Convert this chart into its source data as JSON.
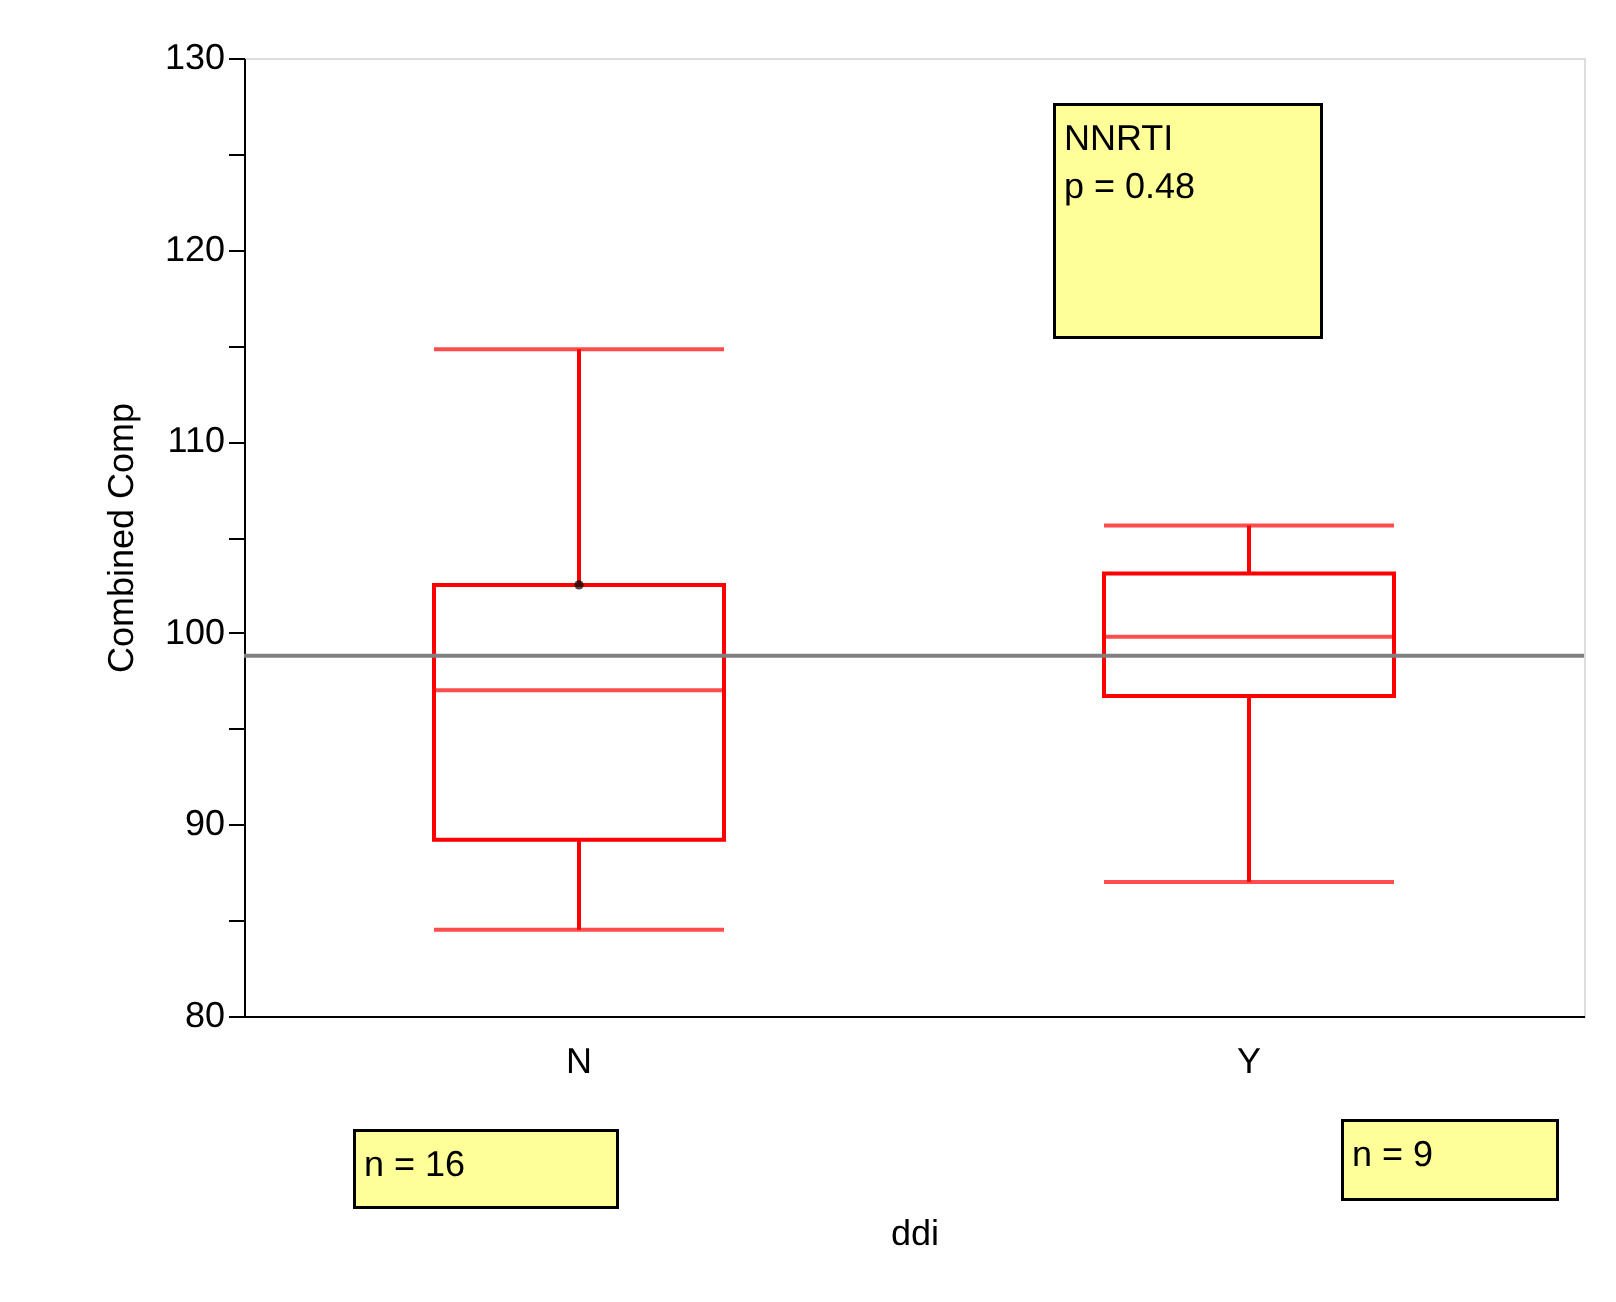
{
  "chart_data": {
    "type": "box",
    "xlabel": "ddi",
    "ylabel": "Combined Comp",
    "categories": [
      "N",
      "Y"
    ],
    "series": [
      {
        "type": "box",
        "color": "#ff0000",
        "boxes": [
          {
            "low": 84.5,
            "q1": 89.2,
            "median": 97.0,
            "q3": 102.5,
            "high": 114.8
          },
          {
            "low": 87.0,
            "q1": 96.7,
            "median": 99.8,
            "q3": 103.1,
            "high": 105.6
          }
        ]
      },
      {
        "type": "scatter",
        "x": [
          "N"
        ],
        "values": [
          102.5
        ],
        "color": "#000000"
      }
    ],
    "ylim": [
      80,
      130
    ],
    "yticks": [
      80,
      {
        "value": 85,
        "label": null
      },
      90,
      {
        "value": 95,
        "label": null
      },
      100,
      {
        "value": 105,
        "label": null
      },
      110,
      {
        "value": 115,
        "label": null
      },
      120,
      {
        "value": 125,
        "label": null
      },
      130
    ],
    "grid": false,
    "marker": "circle",
    "ref_lines": [
      {
        "axis": "y",
        "value": 98.8,
        "color": "#808080"
      }
    ],
    "annotations": [
      "NNRTI\np = 0.48",
      "n = 16",
      "n = 9"
    ]
  }
}
